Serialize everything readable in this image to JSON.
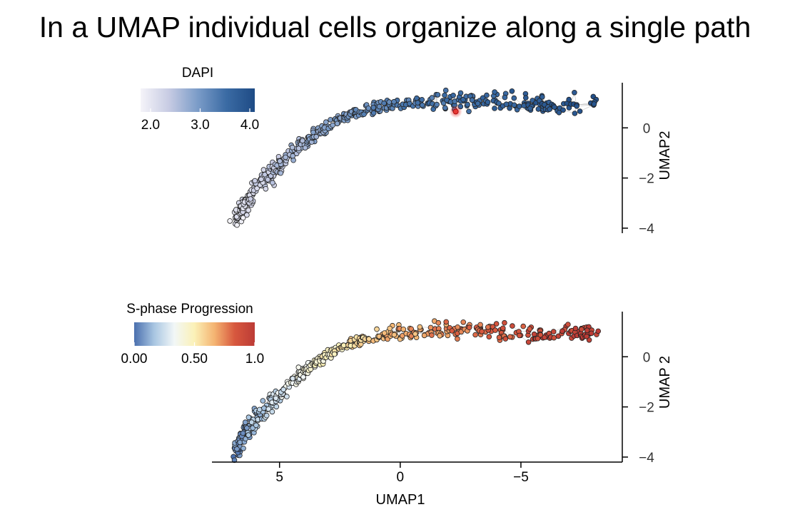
{
  "slide": {
    "title": "In a UMAP individual cells organize along a single path"
  },
  "chart_data": [
    {
      "type": "scatter",
      "title": "",
      "xlabel": "UMAP1",
      "ylabel": "UMAP2",
      "xlim": [
        7.8,
        -9.2
      ],
      "ylim": [
        -4.2,
        1.8
      ],
      "yticks": [
        0,
        -2,
        -4
      ],
      "ytick_labels": [
        "0",
        "−2",
        "−4"
      ],
      "colorbar": {
        "label": "DAPI",
        "ticks": [
          2.0,
          3.0,
          4.0
        ],
        "tick_labels": [
          "2.0",
          "3.0",
          "4.0"
        ],
        "range": [
          1.8,
          4.1
        ],
        "colors": [
          "#f5f4f9",
          "#c7cbe3",
          "#7b9cc8",
          "#3b6ba4",
          "#1e4b85"
        ]
      },
      "path": [
        {
          "x": 6.9,
          "y": -3.8
        },
        {
          "x": 6.5,
          "y": -3.1
        },
        {
          "x": 6.0,
          "y": -2.45
        },
        {
          "x": 5.3,
          "y": -1.75
        },
        {
          "x": 4.5,
          "y": -1.0
        },
        {
          "x": 3.6,
          "y": -0.3
        },
        {
          "x": 2.6,
          "y": 0.3
        },
        {
          "x": 1.5,
          "y": 0.7
        },
        {
          "x": 0.0,
          "y": 0.95
        },
        {
          "x": -2.0,
          "y": 1.1
        },
        {
          "x": -4.0,
          "y": 1.05
        },
        {
          "x": -6.0,
          "y": 0.9
        },
        {
          "x": -8.2,
          "y": 1.0
        }
      ],
      "color_range": [
        1.9,
        4.0
      ],
      "highlight": {
        "x": -2.3,
        "y": 0.65,
        "color": "#e53935"
      }
    },
    {
      "type": "scatter",
      "title": "",
      "xlabel": "UMAP1",
      "ylabel": "UMAP 2",
      "xlim": [
        7.8,
        -9.2
      ],
      "ylim": [
        -4.2,
        1.8
      ],
      "xticks": [
        5,
        0,
        -5
      ],
      "xtick_labels": [
        "5",
        "0",
        "−5"
      ],
      "yticks": [
        0,
        -2,
        -4
      ],
      "ytick_labels": [
        "0",
        "−2",
        "−4"
      ],
      "colorbar": {
        "label": "S-phase Progression",
        "ticks": [
          0.0,
          0.5,
          1.0
        ],
        "tick_labels": [
          "0.00",
          "0.50",
          "1.0"
        ],
        "range": [
          0.0,
          1.0
        ],
        "colors": [
          "#4a6fae",
          "#a9c6e2",
          "#f2f7f7",
          "#fbf1b7",
          "#f4b371",
          "#d7583e",
          "#bc3b36"
        ]
      },
      "path": [
        {
          "x": 6.9,
          "y": -3.9
        },
        {
          "x": 6.5,
          "y": -3.1
        },
        {
          "x": 6.0,
          "y": -2.45
        },
        {
          "x": 5.3,
          "y": -1.75
        },
        {
          "x": 4.5,
          "y": -1.0
        },
        {
          "x": 3.6,
          "y": -0.3
        },
        {
          "x": 2.6,
          "y": 0.3
        },
        {
          "x": 1.5,
          "y": 0.7
        },
        {
          "x": 0.0,
          "y": 0.95
        },
        {
          "x": -2.0,
          "y": 1.1
        },
        {
          "x": -4.0,
          "y": 1.05
        },
        {
          "x": -6.0,
          "y": 0.9
        },
        {
          "x": -8.2,
          "y": 1.0
        }
      ],
      "color_range": [
        0.0,
        1.0
      ]
    }
  ]
}
